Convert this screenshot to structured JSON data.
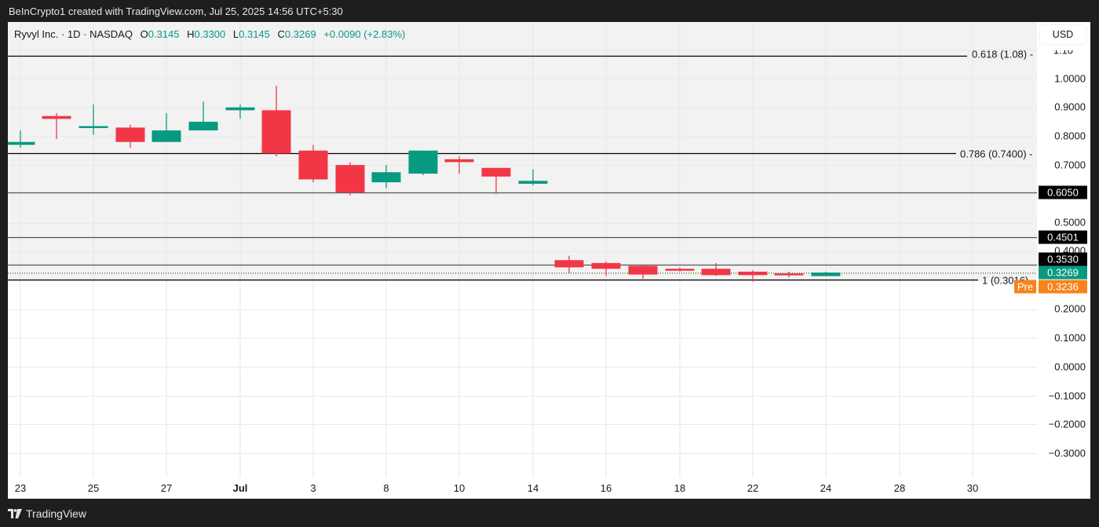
{
  "header": {
    "attribution": "BeInCrypto1 created with TradingView.com, Jul 25, 2025 14:56 UTC+5:30"
  },
  "legend": {
    "symbol": "Ryvyl Inc. · 1D · NASDAQ",
    "o_label": "O",
    "o_value": "0.3145",
    "h_label": "H",
    "h_value": "0.3300",
    "l_label": "L",
    "l_value": "0.3145",
    "c_label": "C",
    "c_value": "0.3269",
    "change": "+0.0090 (+2.83%)"
  },
  "price_axis": {
    "currency": "USD",
    "ticks": [
      "1.10",
      "1.0000",
      "0.9000",
      "0.8000",
      "0.7000",
      "0.5000",
      "0.4000",
      "0.2000",
      "0.1000",
      "0.0000",
      "−0.1000",
      "−0.2000",
      "−0.3000"
    ],
    "badges": {
      "level_0605": "0.6050",
      "level_04501": "0.4501",
      "level_03530": "0.3530",
      "last_price": "0.3269",
      "premarket_label": "Pre",
      "premarket_price": "0.3236"
    }
  },
  "fib_labels": {
    "f0618": "0.618 (1.08) -",
    "f0786": "0.786 (0.7400) -",
    "f1": "1 (0.3016)"
  },
  "time_axis": {
    "labels": [
      "23",
      "25",
      "27",
      "Jul",
      "3",
      "8",
      "10",
      "14",
      "16",
      "18",
      "22",
      "24",
      "28",
      "30"
    ]
  },
  "footer": {
    "brand": "TradingView"
  },
  "colors": {
    "up": "#089981",
    "down": "#f23645",
    "premarket": "#f7841a",
    "background_shaded": "#f2f2f2"
  },
  "chart_data": {
    "type": "candlestick",
    "title": "Ryvyl Inc. · 1D · NASDAQ",
    "ylabel": "USD",
    "ylim": [
      -0.35,
      1.12
    ],
    "grid": true,
    "x": [
      "Jun 23",
      "Jun 24",
      "Jun 25",
      "Jun 26",
      "Jun 27",
      "Jun 30",
      "Jul 1",
      "Jul 2",
      "Jul 3",
      "Jul 7",
      "Jul 8",
      "Jul 9",
      "Jul 10",
      "Jul 11",
      "Jul 14",
      "Jul 15",
      "Jul 16",
      "Jul 17",
      "Jul 18",
      "Jul 21",
      "Jul 22",
      "Jul 23",
      "Jul 24"
    ],
    "series": [
      {
        "name": "open",
        "values": [
          0.77,
          0.87,
          0.835,
          0.83,
          0.78,
          0.82,
          0.89,
          0.89,
          0.75,
          0.7,
          0.64,
          0.67,
          0.72,
          0.69,
          0.635,
          0.37,
          0.36,
          0.35,
          0.34,
          0.34,
          0.33,
          0.324,
          0.3145
        ]
      },
      {
        "name": "high",
        "values": [
          0.82,
          0.88,
          0.91,
          0.84,
          0.88,
          0.92,
          0.91,
          0.975,
          0.77,
          0.71,
          0.7,
          0.75,
          0.73,
          0.69,
          0.685,
          0.385,
          0.365,
          0.355,
          0.345,
          0.36,
          0.335,
          0.33,
          0.33
        ]
      },
      {
        "name": "low",
        "values": [
          0.76,
          0.79,
          0.805,
          0.76,
          0.78,
          0.82,
          0.86,
          0.73,
          0.64,
          0.595,
          0.62,
          0.665,
          0.67,
          0.6,
          0.63,
          0.325,
          0.315,
          0.305,
          0.33,
          0.315,
          0.295,
          0.31,
          0.3145
        ]
      },
      {
        "name": "close",
        "values": [
          0.78,
          0.86,
          0.835,
          0.78,
          0.82,
          0.85,
          0.9,
          0.74,
          0.65,
          0.605,
          0.675,
          0.75,
          0.71,
          0.66,
          0.645,
          0.345,
          0.34,
          0.32,
          0.338,
          0.318,
          0.318,
          0.32,
          0.3269
        ]
      }
    ],
    "horizontal_levels": [
      {
        "label": "0.618 (1.08)",
        "value": 1.08
      },
      {
        "label": "0.786 (0.7400)",
        "value": 0.74
      },
      {
        "label": "0.6050",
        "value": 0.605
      },
      {
        "label": "0.4501",
        "value": 0.4501
      },
      {
        "label": "0.3530",
        "value": 0.353
      },
      {
        "label": "1 (0.3016)",
        "value": 0.3016
      }
    ],
    "last_price": 0.3269,
    "premarket_price": 0.3236
  }
}
